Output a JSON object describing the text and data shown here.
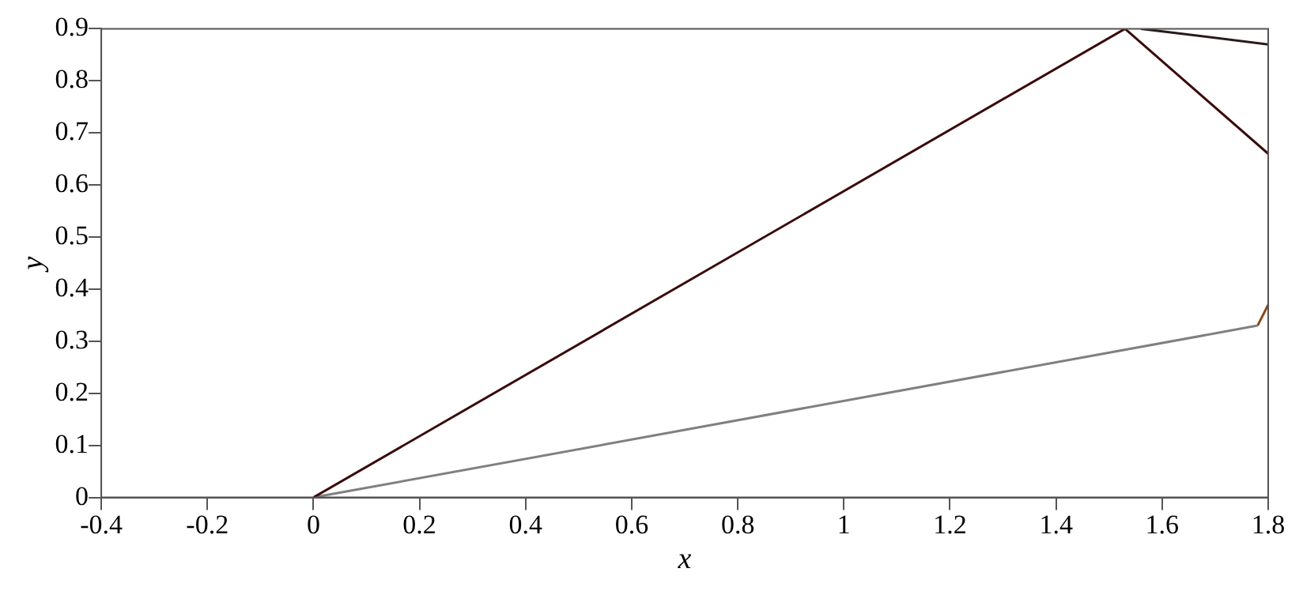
{
  "chart_data": {
    "type": "line",
    "xlabel": "x",
    "ylabel": "y",
    "xlim": [
      -0.4,
      1.8
    ],
    "ylim": [
      0,
      0.9
    ],
    "xticks": [
      -0.4,
      -0.2,
      0,
      0.2,
      0.4,
      0.6,
      0.8,
      1,
      1.2,
      1.4,
      1.6,
      1.8
    ],
    "yticks": [
      0,
      0.1,
      0.2,
      0.3,
      0.4,
      0.5,
      0.6,
      0.7,
      0.8,
      0.9
    ],
    "grid": false,
    "legend": false,
    "marker": "none",
    "line_style": "solid",
    "series": [
      {
        "color": "#3a0a0a",
        "x": [
          0,
          1.53,
          1.8
        ],
        "values": [
          0,
          0.9,
          0.66
        ]
      },
      {
        "color": "#2a1a1a",
        "x": [
          1.56,
          1.8
        ],
        "values": [
          0.9,
          0.87
        ]
      },
      {
        "color": "#808080",
        "x": [
          0,
          1.78
        ],
        "values": [
          0,
          0.33
        ]
      },
      {
        "color": "#8a4a1a",
        "x": [
          1.78,
          1.8
        ],
        "values": [
          0.33,
          0.37
        ]
      }
    ]
  }
}
